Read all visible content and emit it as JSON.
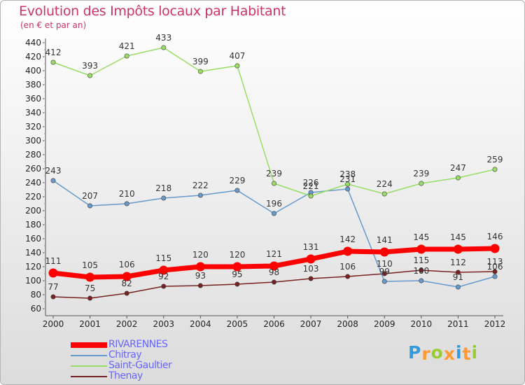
{
  "title": "Evolution des Impôts locaux par Habitant",
  "subtitle": "(en € et par an)",
  "logo": {
    "text": "Proxiti",
    "letters": [
      "P",
      "r",
      "o",
      "x",
      "i",
      "t",
      "i"
    ],
    "colors": [
      "#3399dd",
      "#ff9933",
      "#99cc33",
      "#ff9933",
      "#3399dd",
      "#ff9933",
      "#99cc33"
    ]
  },
  "chart_data": {
    "type": "line",
    "x": [
      "2000",
      "2001",
      "2002",
      "2003",
      "2004",
      "2005",
      "2006",
      "2007",
      "2008",
      "2009",
      "2010",
      "2011",
      "2012"
    ],
    "ylim": [
      60,
      440
    ],
    "yticks": [
      60,
      80,
      100,
      120,
      140,
      160,
      180,
      200,
      220,
      240,
      260,
      280,
      300,
      320,
      340,
      360,
      380,
      400,
      420,
      440
    ],
    "grid": false,
    "legend_position": "bottom-left",
    "series": [
      {
        "name": "RIVARENNES",
        "color": "#ff0000",
        "values": [
          111,
          105,
          106,
          115,
          120,
          120,
          121,
          131,
          142,
          141,
          145,
          145,
          146
        ]
      },
      {
        "name": "Chitray",
        "color": "#6699cc",
        "values": [
          243,
          207,
          210,
          218,
          222,
          229,
          196,
          226,
          231,
          99,
          100,
          91,
          106
        ]
      },
      {
        "name": "Saint-Gaultier",
        "color": "#99dd66",
        "values": [
          412,
          393,
          421,
          433,
          399,
          407,
          239,
          221,
          238,
          224,
          239,
          247,
          259
        ]
      },
      {
        "name": "Thenay",
        "color": "#772222",
        "values": [
          77,
          75,
          82,
          92,
          93,
          95,
          98,
          103,
          106,
          110,
          115,
          112,
          113
        ]
      }
    ],
    "point_labels": [
      [
        "111",
        "105",
        "106",
        "115",
        "120",
        "120",
        "121",
        "131",
        "142",
        "141",
        "145",
        "145",
        "146"
      ],
      [
        "243",
        "207",
        "210",
        "218",
        "222",
        "229",
        "196",
        "226",
        "231",
        "99",
        "100",
        "91",
        "106"
      ],
      [
        "412",
        "393",
        "421",
        "433",
        "399",
        "407",
        "239",
        "221",
        "238",
        "224",
        "239",
        "247",
        "259"
      ],
      [
        "77",
        "75",
        "82",
        "92",
        "93",
        "95",
        "98",
        "103",
        "106",
        "110",
        "115",
        "112",
        "113"
      ]
    ]
  }
}
